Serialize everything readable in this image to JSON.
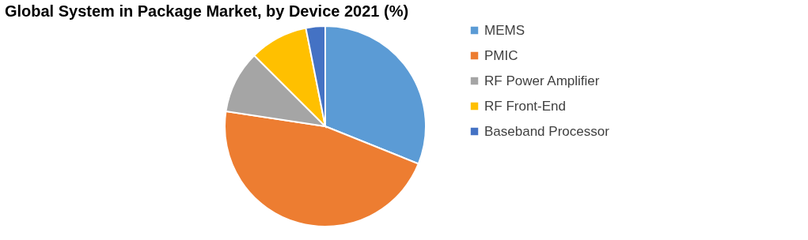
{
  "chart_data": {
    "type": "pie",
    "title": "Global System in Package Market, by Device 2021 (%)",
    "categories": [
      "MEMS",
      "PMIC",
      "RF Power Amplifier",
      "RF Front-End",
      "Baseband Processor"
    ],
    "values": [
      31.1,
      46.3,
      10.1,
      9.4,
      3.1
    ],
    "colors": [
      "#5b9bd5",
      "#ed7d31",
      "#a5a5a5",
      "#ffc000",
      "#4472c4"
    ],
    "legend": "right"
  }
}
